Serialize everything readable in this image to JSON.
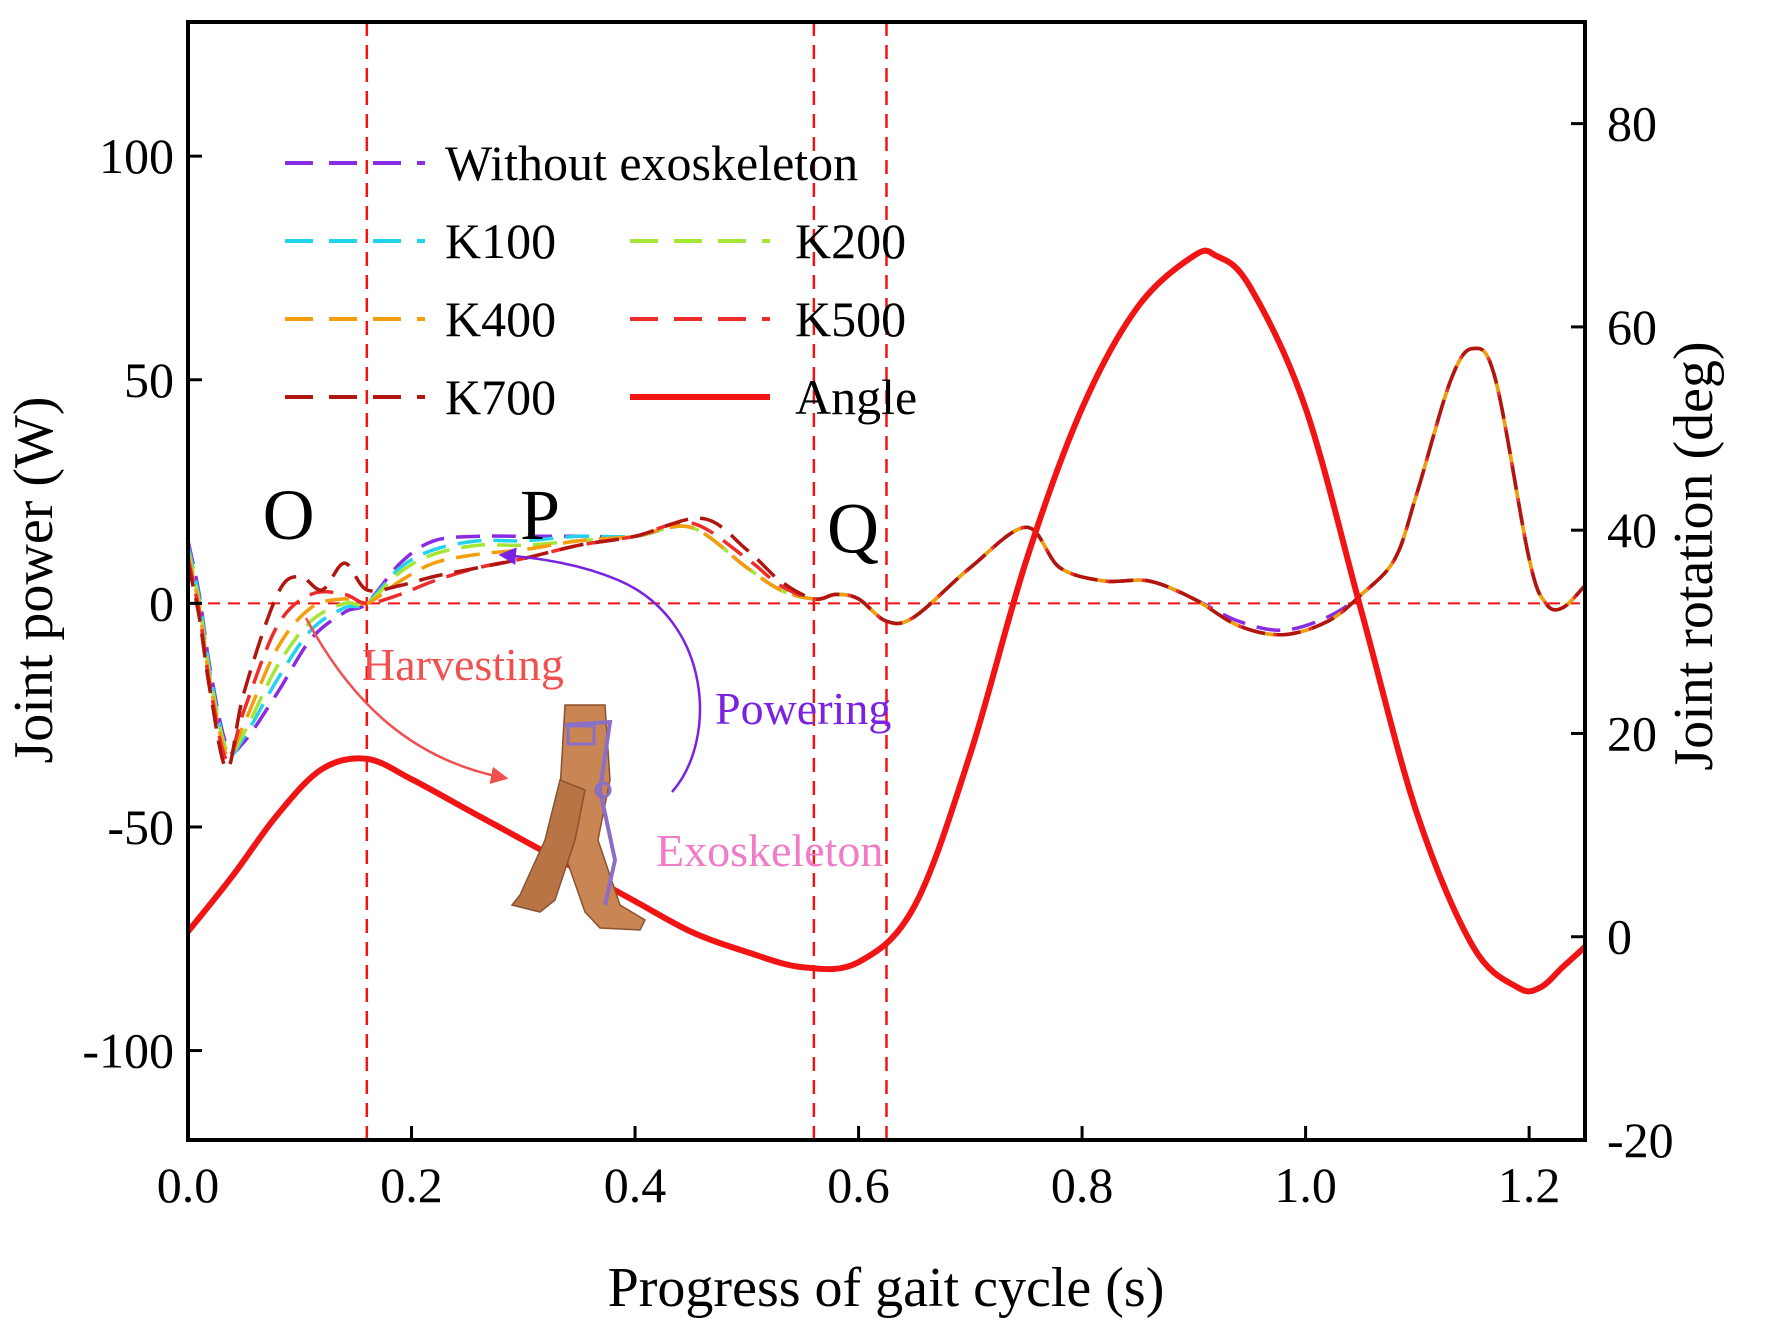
{
  "chart_data": {
    "type": "line",
    "xlabel": "Progress of gait cycle (s)",
    "ylabel_left": "Joint power (W)",
    "ylabel_right": "Joint rotation (deg)",
    "xlim": [
      0,
      1.25
    ],
    "ylim_left": [
      -120,
      130
    ],
    "ylim_right": [
      -20,
      90
    ],
    "xticks": [
      "0.0",
      "0.2",
      "0.4",
      "0.6",
      "0.8",
      "1.0",
      "1.2"
    ],
    "xtick_values": [
      0,
      0.2,
      0.4,
      0.6,
      0.8,
      1.0,
      1.2
    ],
    "yticks_left": [
      "-100",
      "-50",
      "0",
      "50",
      "100"
    ],
    "ytick_values_left": [
      -100,
      -50,
      0,
      50,
      100
    ],
    "yticks_right": [
      "-20",
      "0",
      "20",
      "40",
      "60",
      "80"
    ],
    "ytick_values_right": [
      -20,
      0,
      20,
      40,
      60,
      80
    ],
    "vertical_lines_x": [
      0.16,
      0.56,
      0.625
    ],
    "zero_line_y": 0,
    "region_labels": [
      {
        "text": "O",
        "x": 0.09,
        "y": 20
      },
      {
        "text": "P",
        "x": 0.315,
        "y": 20
      },
      {
        "text": "Q",
        "x": 0.595,
        "y": 17
      }
    ],
    "annotations": {
      "harvesting": {
        "text": "Harvesting",
        "color": "#f05050"
      },
      "powering": {
        "text": "Powering",
        "color": "#7a22e0"
      },
      "exoskeleton": {
        "text": "Exoskeleton",
        "color": "#f07cc8"
      }
    },
    "legend": [
      {
        "label": "Without exoskeleton",
        "color": "#8a2be2",
        "style": "dashed"
      },
      {
        "label": "K100",
        "color": "#22d3ee",
        "style": "dashed"
      },
      {
        "label": "K200",
        "color": "#a3e635",
        "style": "dashed"
      },
      {
        "label": "K400",
        "color": "#f59e0b",
        "style": "dashed"
      },
      {
        "label": "K500",
        "color": "#ef2b2b",
        "style": "dashed"
      },
      {
        "label": "K700",
        "color": "#b0150f",
        "style": "dashed"
      },
      {
        "label": "Angle",
        "color": "#f01414",
        "style": "solid"
      }
    ],
    "series": [
      {
        "name": "Without exoskeleton",
        "axis": "left",
        "color": "#8a2be2",
        "x": [
          0,
          0.01,
          0.02,
          0.035,
          0.05,
          0.08,
          0.11,
          0.14,
          0.16,
          0.19,
          0.22,
          0.26,
          0.3,
          0.35,
          0.4,
          0.45,
          0.5,
          0.53,
          0.56,
          0.58,
          0.6,
          0.625,
          0.65,
          0.7,
          0.75,
          0.78,
          0.82,
          0.86,
          0.9,
          0.94,
          0.98,
          1.02,
          1.05,
          1.08,
          1.1,
          1.13,
          1.15,
          1.17,
          1.2,
          1.215,
          1.23,
          1.25
        ],
        "y": [
          14,
          2,
          -15,
          -32,
          -31,
          -20,
          -8,
          -2,
          0,
          9,
          14,
          15,
          15,
          15,
          15,
          17,
          8,
          3,
          1,
          2,
          1,
          -4,
          -3,
          8,
          17,
          8,
          5,
          5,
          1,
          -4,
          -6,
          -3,
          2,
          10,
          25,
          50,
          57,
          50,
          10,
          0,
          -1,
          4
        ]
      },
      {
        "name": "K100",
        "axis": "left",
        "color": "#22d3ee",
        "x": [
          0,
          0.01,
          0.02,
          0.035,
          0.05,
          0.08,
          0.11,
          0.14,
          0.16,
          0.19,
          0.22,
          0.26,
          0.3,
          0.35,
          0.4,
          0.45,
          0.5,
          0.53,
          0.56,
          0.58,
          0.6,
          0.625,
          0.65,
          0.7,
          0.75,
          0.78,
          0.82,
          0.86,
          0.9,
          0.94,
          0.98,
          1.02,
          1.05,
          1.08,
          1.1,
          1.13,
          1.15,
          1.17,
          1.2,
          1.215,
          1.23,
          1.25
        ],
        "y": [
          13,
          1,
          -16,
          -33,
          -30,
          -17,
          -6,
          -1,
          0,
          8,
          12,
          14,
          14,
          15,
          15,
          17,
          8,
          3,
          1,
          2,
          1,
          -4,
          -3,
          8,
          17,
          8,
          5,
          5,
          1,
          -5,
          -7,
          -4,
          2,
          10,
          25,
          50,
          57,
          50,
          10,
          0,
          -1,
          4
        ]
      },
      {
        "name": "K200",
        "axis": "left",
        "color": "#a3e635",
        "x": [
          0,
          0.01,
          0.02,
          0.035,
          0.05,
          0.08,
          0.11,
          0.14,
          0.16,
          0.19,
          0.22,
          0.26,
          0.3,
          0.35,
          0.4,
          0.45,
          0.5,
          0.53,
          0.56,
          0.58,
          0.6,
          0.625,
          0.65,
          0.7,
          0.75,
          0.78,
          0.82,
          0.86,
          0.9,
          0.94,
          0.98,
          1.02,
          1.05,
          1.08,
          1.1,
          1.13,
          1.15,
          1.17,
          1.2,
          1.215,
          1.23,
          1.25
        ],
        "y": [
          12,
          0,
          -17,
          -33,
          -29,
          -14,
          -4,
          0,
          0,
          7,
          11,
          13,
          13,
          14,
          15,
          17,
          8,
          3,
          1,
          2,
          1,
          -4,
          -3,
          8,
          17,
          8,
          5,
          5,
          1,
          -5,
          -7,
          -4,
          2,
          10,
          25,
          50,
          57,
          50,
          10,
          0,
          -1,
          4
        ]
      },
      {
        "name": "K400",
        "axis": "left",
        "color": "#f59e0b",
        "x": [
          0,
          0.01,
          0.02,
          0.035,
          0.05,
          0.08,
          0.11,
          0.14,
          0.16,
          0.19,
          0.22,
          0.26,
          0.3,
          0.35,
          0.4,
          0.45,
          0.5,
          0.53,
          0.56,
          0.58,
          0.6,
          0.625,
          0.65,
          0.7,
          0.75,
          0.78,
          0.82,
          0.86,
          0.9,
          0.94,
          0.98,
          1.02,
          1.05,
          1.08,
          1.1,
          1.13,
          1.15,
          1.17,
          1.2,
          1.215,
          1.23,
          1.25
        ],
        "y": [
          11,
          -1,
          -18,
          -34,
          -27,
          -10,
          -1,
          1,
          0,
          5,
          9,
          11,
          12,
          14,
          15,
          17,
          8,
          3,
          1,
          2,
          1,
          -4,
          -3,
          8,
          17,
          8,
          5,
          5,
          1,
          -5,
          -7,
          -4,
          2,
          10,
          25,
          50,
          57,
          50,
          10,
          0,
          -1,
          4
        ]
      },
      {
        "name": "K500",
        "axis": "left",
        "color": "#ef2b2b",
        "x": [
          0,
          0.01,
          0.02,
          0.035,
          0.05,
          0.08,
          0.11,
          0.14,
          0.16,
          0.19,
          0.22,
          0.26,
          0.3,
          0.35,
          0.4,
          0.45,
          0.5,
          0.53,
          0.56,
          0.58,
          0.6,
          0.625,
          0.65,
          0.7,
          0.75,
          0.78,
          0.82,
          0.86,
          0.9,
          0.94,
          0.98,
          1.02,
          1.05,
          1.08,
          1.1,
          1.13,
          1.15,
          1.17,
          1.2,
          1.215,
          1.23,
          1.25
        ],
        "y": [
          10,
          -2,
          -19,
          -35,
          -24,
          -5,
          2,
          2,
          0,
          2,
          5,
          8,
          10,
          13,
          15,
          18,
          10,
          4,
          1,
          2,
          1,
          -4,
          -3,
          8,
          17,
          8,
          5,
          5,
          1,
          -5,
          -7,
          -4,
          2,
          10,
          25,
          50,
          57,
          50,
          10,
          0,
          -1,
          4
        ]
      },
      {
        "name": "K700",
        "axis": "left",
        "color": "#b0150f",
        "x": [
          0,
          0.01,
          0.02,
          0.035,
          0.05,
          0.08,
          0.1,
          0.12,
          0.14,
          0.16,
          0.19,
          0.22,
          0.26,
          0.3,
          0.35,
          0.4,
          0.46,
          0.5,
          0.53,
          0.56,
          0.58,
          0.6,
          0.625,
          0.65,
          0.7,
          0.75,
          0.78,
          0.82,
          0.86,
          0.9,
          0.94,
          0.98,
          1.02,
          1.05,
          1.08,
          1.1,
          1.13,
          1.15,
          1.17,
          1.2,
          1.215,
          1.23,
          1.25
        ],
        "y": [
          9,
          -3,
          -20,
          -37,
          -20,
          2,
          6,
          3,
          9,
          3,
          4,
          6,
          8,
          10,
          13,
          15,
          19,
          12,
          5,
          1,
          2,
          1,
          -4,
          -3,
          8,
          17,
          8,
          5,
          5,
          1,
          -5,
          -7,
          -4,
          2,
          10,
          25,
          50,
          57,
          50,
          10,
          0,
          -1,
          4
        ]
      },
      {
        "name": "Angle",
        "axis": "right",
        "color": "#f01414",
        "x": [
          0,
          0.04,
          0.08,
          0.12,
          0.16,
          0.2,
          0.25,
          0.3,
          0.35,
          0.4,
          0.45,
          0.5,
          0.55,
          0.6,
          0.65,
          0.7,
          0.75,
          0.8,
          0.85,
          0.9,
          0.92,
          0.95,
          1.0,
          1.05,
          1.1,
          1.15,
          1.19,
          1.21,
          1.23,
          1.25
        ],
        "y": [
          0.5,
          6,
          12,
          16.5,
          17.5,
          15.5,
          12.5,
          9.5,
          6.5,
          3.5,
          0.5,
          -1.5,
          -3,
          -2.5,
          3,
          18,
          37,
          52,
          62,
          67,
          67,
          64,
          52,
          32,
          12,
          -1,
          -5,
          -5,
          -3,
          -1
        ]
      }
    ]
  }
}
